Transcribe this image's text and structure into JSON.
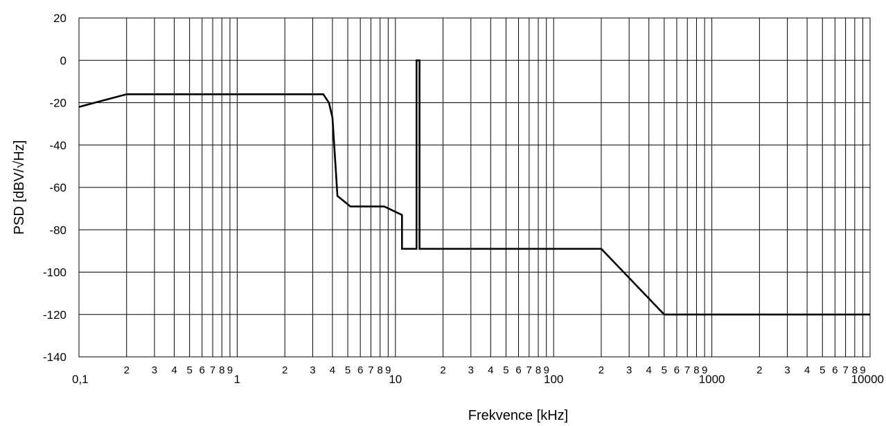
{
  "chart_data": {
    "type": "line",
    "title": "",
    "xlabel": "Frekvence [kHz]",
    "ylabel": "PSD [dBV/√Hz]",
    "x_scale": "log",
    "xlim": [
      0.1,
      10000
    ],
    "ylim": [
      -140,
      20
    ],
    "grid": true,
    "x_major_tick_labels": [
      "0,1",
      "1",
      "10",
      "100",
      "1000",
      "10000"
    ],
    "x_major_tick_values": [
      0.1,
      1,
      10,
      100,
      1000,
      10000
    ],
    "x_minor_tick_labels": [
      "2",
      "3",
      "4",
      "5",
      "6",
      "7",
      "8",
      "9"
    ],
    "y_ticks": [
      20,
      0,
      -20,
      -40,
      -60,
      -80,
      -100,
      -120,
      -140
    ],
    "y_tick_labels": [
      "20",
      "0",
      "-20",
      "-40",
      "-60",
      "-80",
      "-100",
      "-120",
      "-140"
    ],
    "series": [
      {
        "color": "#000000",
        "x": [
          0.1,
          0.2,
          3.5,
          3.8,
          4.0,
          4.2,
          4.3,
          5.2,
          8.5,
          11.0,
          11.0,
          13.6,
          13.6,
          14.2,
          14.2,
          200,
          500,
          10000
        ],
        "y": [
          -22,
          -16,
          -16,
          -20,
          -27,
          -52,
          -64,
          -69,
          -69,
          -73,
          -89,
          -89,
          0,
          0,
          -89,
          -89,
          -120,
          -120
        ]
      }
    ]
  }
}
